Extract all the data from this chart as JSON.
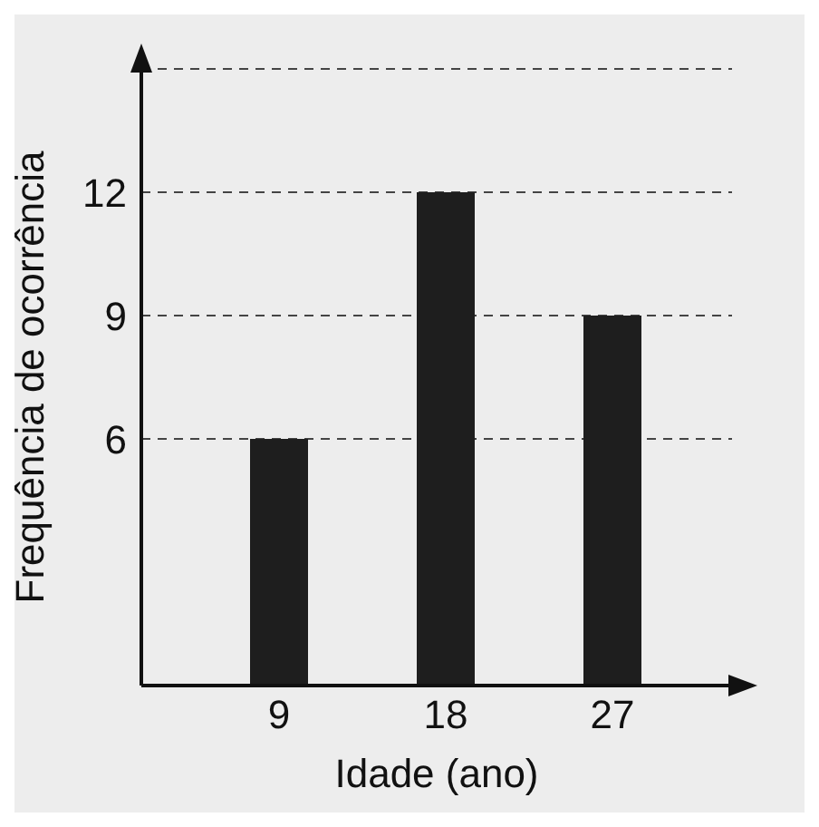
{
  "chart_data": {
    "type": "bar",
    "xlabel": "Idade (ano)",
    "ylabel": "Frequência de ocorrência",
    "categories": [
      "9",
      "18",
      "27"
    ],
    "values": [
      6,
      12,
      9
    ],
    "color": "#1e1e1e",
    "ylim": [
      0,
      15
    ],
    "yticks": [
      6,
      9,
      12
    ],
    "grid": "y"
  }
}
